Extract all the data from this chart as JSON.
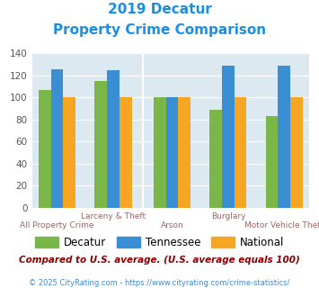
{
  "title_line1": "2019 Decatur",
  "title_line2": "Property Crime Comparison",
  "title_color": "#1a8fe0",
  "categories": [
    "All Property Crime",
    "Larceny & Theft",
    "Arson",
    "Burglary",
    "Motor Vehicle Theft"
  ],
  "decatur": [
    107,
    115,
    100,
    89,
    83
  ],
  "tennessee": [
    126,
    125,
    100,
    129,
    129
  ],
  "national": [
    100,
    100,
    100,
    100,
    100
  ],
  "decatur_color": "#7ab648",
  "tennessee_color": "#3a8fd4",
  "national_color": "#f5a623",
  "bg_color": "#dce9f0",
  "ylim": [
    0,
    140
  ],
  "yticks": [
    0,
    20,
    40,
    60,
    80,
    100,
    120,
    140
  ],
  "footnote": "Compared to U.S. average. (U.S. average equals 100)",
  "footnote2": "© 2025 CityRating.com - https://www.cityrating.com/crime-statistics/",
  "footnote_color": "#8b0000",
  "footnote2_color": "#4488cc",
  "bar_width": 0.22,
  "legend_labels": [
    "Decatur",
    "Tennessee",
    "National"
  ],
  "label_top": [
    "",
    "Larceny & Theft",
    "",
    "Burglary",
    ""
  ],
  "label_bot": [
    "All Property Crime",
    "",
    "Arson",
    "",
    "Motor Vehicle Theft"
  ],
  "label_color": "#996666",
  "group_centers": [
    0,
    1.0,
    2.05,
    3.05,
    4.05
  ]
}
